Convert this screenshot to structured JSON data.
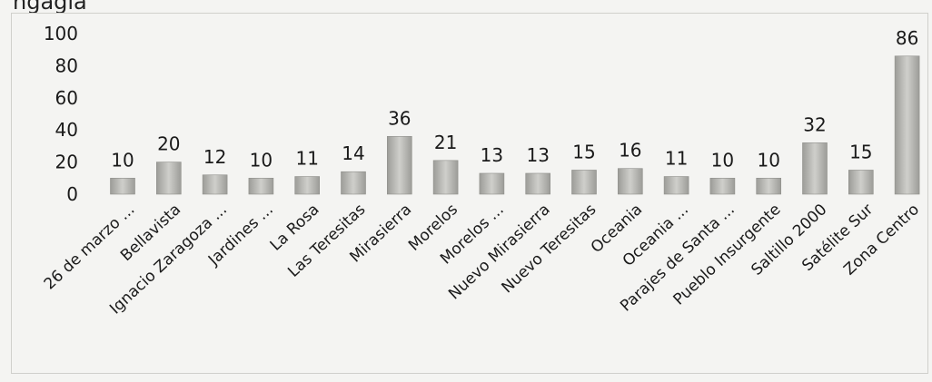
{
  "header_text": "ngagia",
  "chart_data": {
    "type": "bar",
    "categories": [
      "26 de marzo ...",
      "Bellavista",
      "Ignacio Zaragoza ...",
      "Jardines ...",
      "La Rosa",
      "Las Teresitas",
      "Mirasierra",
      "Morelos",
      "Morelos ...",
      "Nuevo Mirasierra",
      "Nuevo Teresitas",
      "Oceania",
      "Oceania ...",
      "Parajes de Santa ...",
      "Pueblo Insurgente",
      "Saltillo 2000",
      "Satélite Sur",
      "Zona Centro"
    ],
    "values": [
      10,
      20,
      12,
      10,
      11,
      14,
      36,
      21,
      13,
      13,
      15,
      16,
      11,
      10,
      10,
      32,
      15,
      86
    ],
    "data_labels": [
      "10",
      "20",
      "12",
      "10",
      "11",
      "14",
      "36",
      "21",
      "13",
      "13",
      "15",
      "16",
      "11",
      "10",
      "10",
      "32",
      "15",
      "86"
    ],
    "ylim": [
      0,
      100
    ],
    "yticks": [
      0,
      20,
      40,
      60,
      80,
      100
    ],
    "ytick_labels": [
      "0",
      "20",
      "40",
      "60",
      "80",
      "100"
    ],
    "grid": false,
    "legend": "none",
    "title": "",
    "xlabel": "",
    "ylabel": "",
    "colors": {
      "bar": "#b9b9b5",
      "bar_dark": "#8f8f8b",
      "text": "#1a1a1a"
    }
  }
}
